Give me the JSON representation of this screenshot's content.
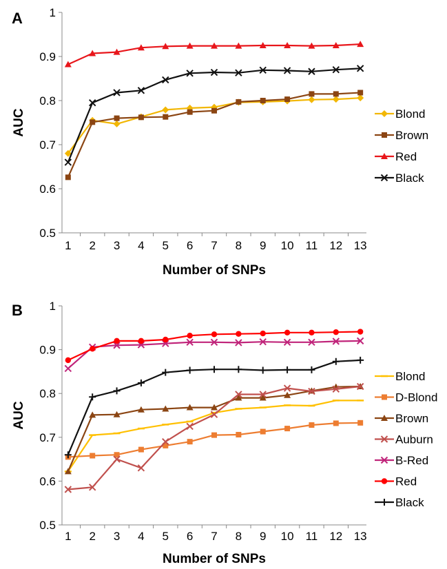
{
  "chart_data": [
    {
      "type": "line",
      "panel_label": "A",
      "xlabel": "Number of SNPs",
      "ylabel": "AUC",
      "x": [
        1,
        2,
        3,
        4,
        5,
        6,
        7,
        8,
        9,
        10,
        11,
        12,
        13
      ],
      "ylim": [
        0.5,
        1
      ],
      "yticks": [
        "0.5",
        "0.6",
        "0.7",
        "0.8",
        "0.9",
        "1"
      ],
      "grid": false,
      "legend_position": "right",
      "series": [
        {
          "name": "Blond",
          "color": "#f2b705",
          "marker": "diamond",
          "values": [
            0.68,
            0.755,
            0.747,
            0.763,
            0.779,
            0.783,
            0.785,
            0.796,
            0.797,
            0.799,
            0.802,
            0.803,
            0.806
          ]
        },
        {
          "name": "Brown",
          "color": "#8b4513",
          "marker": "square",
          "values": [
            0.626,
            0.751,
            0.76,
            0.762,
            0.763,
            0.774,
            0.777,
            0.797,
            0.8,
            0.803,
            0.815,
            0.815,
            0.818
          ]
        },
        {
          "name": "Red",
          "color": "#e8161b",
          "marker": "triangle",
          "values": [
            0.882,
            0.907,
            0.91,
            0.92,
            0.923,
            0.924,
            0.924,
            0.924,
            0.925,
            0.925,
            0.924,
            0.925,
            0.928
          ]
        },
        {
          "name": "Black",
          "color": "#111111",
          "marker": "x",
          "values": [
            0.66,
            0.795,
            0.818,
            0.823,
            0.847,
            0.862,
            0.864,
            0.863,
            0.869,
            0.868,
            0.866,
            0.87,
            0.873
          ]
        }
      ]
    },
    {
      "type": "line",
      "panel_label": "B",
      "xlabel": "Number of SNPs",
      "ylabel": "AUC",
      "x": [
        1,
        2,
        3,
        4,
        5,
        6,
        7,
        8,
        9,
        10,
        11,
        12,
        13
      ],
      "ylim": [
        0.5,
        1
      ],
      "yticks": [
        "0.5",
        "0.6",
        "0.7",
        "0.8",
        "0.9",
        "1"
      ],
      "grid": false,
      "legend_position": "right",
      "series": [
        {
          "name": "Blond",
          "color": "#ffc000",
          "marker": "dash",
          "values": [
            0.622,
            0.705,
            0.709,
            0.72,
            0.729,
            0.736,
            0.756,
            0.765,
            0.768,
            0.773,
            0.772,
            0.784,
            0.784
          ]
        },
        {
          "name": "D-Blond",
          "color": "#ed7d31",
          "marker": "square",
          "values": [
            0.655,
            0.658,
            0.66,
            0.672,
            0.681,
            0.69,
            0.705,
            0.706,
            0.713,
            0.72,
            0.728,
            0.732,
            0.733
          ]
        },
        {
          "name": "Brown",
          "color": "#8b4513",
          "marker": "triangle",
          "values": [
            0.622,
            0.751,
            0.752,
            0.763,
            0.765,
            0.768,
            0.768,
            0.79,
            0.79,
            0.796,
            0.806,
            0.815,
            0.816
          ]
        },
        {
          "name": "Auburn",
          "color": "#c0504d",
          "marker": "x",
          "values": [
            0.581,
            0.586,
            0.65,
            0.63,
            0.69,
            0.725,
            0.752,
            0.798,
            0.798,
            0.812,
            0.805,
            0.81,
            0.816
          ]
        },
        {
          "name": "B-Red",
          "color": "#c0247a",
          "marker": "x",
          "values": [
            0.857,
            0.906,
            0.91,
            0.911,
            0.914,
            0.917,
            0.917,
            0.916,
            0.918,
            0.917,
            0.917,
            0.919,
            0.92
          ]
        },
        {
          "name": "Red",
          "color": "#ff0000",
          "marker": "circle",
          "values": [
            0.876,
            0.902,
            0.92,
            0.92,
            0.923,
            0.932,
            0.935,
            0.936,
            0.937,
            0.939,
            0.939,
            0.94,
            0.941
          ]
        },
        {
          "name": "Black",
          "color": "#111111",
          "marker": "plus",
          "values": [
            0.66,
            0.792,
            0.806,
            0.824,
            0.848,
            0.853,
            0.855,
            0.855,
            0.853,
            0.854,
            0.854,
            0.873,
            0.876
          ]
        }
      ]
    }
  ]
}
